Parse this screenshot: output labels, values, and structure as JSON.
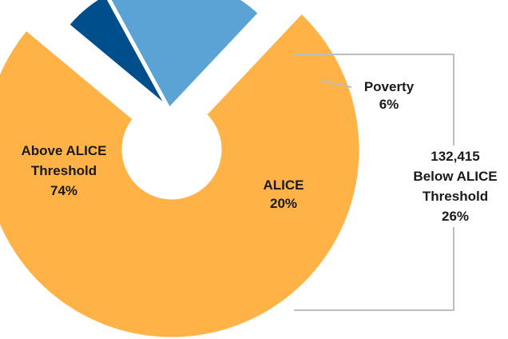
{
  "chart_data": {
    "type": "pie",
    "slices": [
      {
        "name": "Above ALICE Threshold",
        "value": 74,
        "label_lines": [
          "Above ALICE",
          "Threshold",
          "74%"
        ],
        "color": "#FFB347"
      },
      {
        "name": "Poverty",
        "value": 6,
        "label_lines": [
          "Poverty",
          "6%"
        ],
        "color": "#004F8C"
      },
      {
        "name": "ALICE",
        "value": 20,
        "label_lines": [
          "ALICE",
          "20%"
        ],
        "color": "#5BA3D4"
      }
    ],
    "bracket_annotation": {
      "lines": [
        "132,415",
        "Below ALICE",
        "Threshold",
        "26%"
      ]
    },
    "colors": {
      "bracket": "#bdbdbd",
      "separator": "#ffffff"
    }
  }
}
